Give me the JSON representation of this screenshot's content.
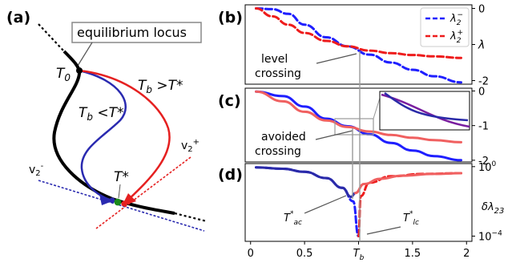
{
  "panel_labels": {
    "a": "(a)",
    "b": "(b)",
    "c": "(c)",
    "d": "(d)"
  },
  "panel_a": {
    "locus_box": "equilibrium locus",
    "t0": "T",
    "t0_sub": "0",
    "tb_low_main": "T",
    "tb_low_sub": "b",
    "tb_low_rel": " <T*",
    "tb_high_main": "T",
    "tb_high_sub": "b",
    "tb_high_rel": " >T*",
    "tstar": "T*",
    "v2m_main": "v",
    "v2m_sub": "2",
    "v2m_sup": "-",
    "v2p_main": "v",
    "v2p_sub": "2",
    "v2p_sup": "+"
  },
  "colors": {
    "blue": "#1f1fff",
    "red": "#ee1c1c",
    "navy": "#2a2aa8",
    "purple": "#7a1fa0",
    "salmon": "#f06060",
    "black": "#000000",
    "green": "#1a8a1a",
    "grey": "#888888"
  },
  "chart_data": [
    {
      "panel": "(b)",
      "type": "line",
      "xlim": [
        -0.05,
        2.05
      ],
      "ylim": [
        -2.1,
        0.1
      ],
      "yticks": [
        "0",
        "λ",
        "-2"
      ],
      "ylabel": "λ",
      "legend_position": "top-right",
      "annotation": [
        "level",
        "crossing"
      ],
      "series": [
        {
          "name": "λ₂⁻",
          "style": "dashed",
          "color": "#1f1fff",
          "x": [
            0.05,
            0.2,
            0.35,
            0.5,
            0.7,
            0.9,
            1.1,
            1.3,
            1.5,
            1.7,
            1.95
          ],
          "y": [
            0.0,
            -0.02,
            -0.15,
            -0.45,
            -0.8,
            -1.05,
            -1.28,
            -1.5,
            -1.7,
            -1.88,
            -2.05
          ]
        },
        {
          "name": "λ₂⁺",
          "style": "dashed",
          "color": "#ee1c1c",
          "x": [
            0.05,
            0.2,
            0.35,
            0.5,
            0.7,
            0.9,
            1.1,
            1.3,
            1.5,
            1.7,
            1.95
          ],
          "y": [
            0.0,
            -0.22,
            -0.45,
            -0.68,
            -0.9,
            -1.05,
            -1.17,
            -1.24,
            -1.29,
            -1.33,
            -1.37
          ]
        }
      ]
    },
    {
      "panel": "(c)",
      "type": "line",
      "xlim": [
        -0.05,
        2.05
      ],
      "ylim": [
        -2.05,
        0.08
      ],
      "yticks": [
        "0",
        "-1",
        "-2"
      ],
      "annotation": [
        "avoided",
        "crossing"
      ],
      "series": [
        {
          "style": "solid",
          "color": "#1f1fff",
          "x": [
            0.05,
            0.3,
            0.5,
            0.7,
            0.9,
            1.1,
            1.3,
            1.5,
            1.7,
            1.95
          ],
          "y": [
            -0.02,
            -0.15,
            -0.45,
            -0.8,
            -1.02,
            -1.25,
            -1.5,
            -1.72,
            -1.88,
            -2.0
          ]
        },
        {
          "style": "solid",
          "color": "#f06060",
          "x": [
            0.05,
            0.3,
            0.5,
            0.7,
            0.9,
            1.1,
            1.3,
            1.5,
            1.7,
            1.95
          ],
          "y": [
            -0.02,
            -0.3,
            -0.6,
            -0.85,
            -1.04,
            -1.17,
            -1.27,
            -1.35,
            -1.42,
            -1.48
          ]
        }
      ]
    },
    {
      "panel": "(d)",
      "type": "line",
      "xlim": [
        -0.05,
        2.05
      ],
      "xticks": [
        "0",
        "0.5",
        "T_b",
        "1.5",
        "2"
      ],
      "xtick_values": [
        0,
        0.5,
        1.0,
        1.5,
        2.0
      ],
      "yscale": "log",
      "ylim": [
        5e-05,
        1.5
      ],
      "yticks": [
        "10^0",
        "10^-4"
      ],
      "ylabel": "δλ₂₃",
      "annotations": [
        "T*_ac",
        "T*_lc"
      ],
      "series": [
        {
          "style": "dashed",
          "color": "#1f1fff",
          "x": [
            0.05,
            0.3,
            0.5,
            0.7,
            0.85,
            0.95,
            1.0
          ],
          "y": [
            0.9,
            0.75,
            0.5,
            0.22,
            0.06,
            0.01,
            0.0001
          ]
        },
        {
          "style": "dashed",
          "color": "#ee1c1c",
          "x": [
            1.0,
            1.02,
            1.1,
            1.3,
            1.6,
            1.95
          ],
          "y": [
            0.0001,
            0.02,
            0.12,
            0.28,
            0.38,
            0.42
          ]
        },
        {
          "style": "solid",
          "color": "#2a2aa8",
          "x": [
            0.05,
            0.3,
            0.5,
            0.7,
            0.85,
            0.93,
            0.97
          ],
          "y": [
            0.9,
            0.75,
            0.5,
            0.22,
            0.06,
            0.018,
            0.03
          ]
        },
        {
          "style": "solid",
          "color": "#f06060",
          "x": [
            0.97,
            1.05,
            1.2,
            1.4,
            1.7,
            1.95
          ],
          "y": [
            0.03,
            0.1,
            0.2,
            0.3,
            0.38,
            0.42
          ]
        }
      ]
    }
  ]
}
